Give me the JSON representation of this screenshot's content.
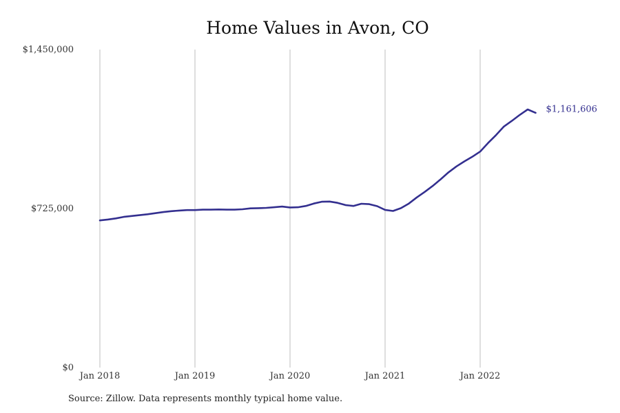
{
  "chart_data": {
    "type": "line",
    "title": "Home Values in Avon, CO",
    "xlabel": "",
    "ylabel": "",
    "ylim": [
      0,
      1450000
    ],
    "y_ticks": [
      0,
      725000,
      1450000
    ],
    "y_tick_labels": [
      "$0",
      "$725,000",
      "$1,450,000"
    ],
    "x_ticks": [
      "2018-01",
      "2019-01",
      "2020-01",
      "2021-01",
      "2022-01"
    ],
    "x_tick_labels": [
      "Jan 2018",
      "Jan 2019",
      "Jan 2020",
      "Jan 2021",
      "Jan 2022"
    ],
    "grid": "vertical lines at x ticks",
    "line_color": "#332f8f",
    "end_label": "$1,161,606",
    "series": [
      {
        "x": [
          "2018-01",
          "2018-02",
          "2018-03",
          "2018-04",
          "2018-05",
          "2018-06",
          "2018-07",
          "2018-08",
          "2018-09",
          "2018-10",
          "2018-11",
          "2018-12",
          "2019-01",
          "2019-02",
          "2019-03",
          "2019-04",
          "2019-05",
          "2019-06",
          "2019-07",
          "2019-08",
          "2019-09",
          "2019-10",
          "2019-11",
          "2019-12",
          "2020-01",
          "2020-02",
          "2020-03",
          "2020-04",
          "2020-05",
          "2020-06",
          "2020-07",
          "2020-08",
          "2020-09",
          "2020-10",
          "2020-11",
          "2020-12",
          "2021-01",
          "2021-02",
          "2021-03",
          "2021-04",
          "2021-05",
          "2021-06",
          "2021-07",
          "2021-08",
          "2021-09",
          "2021-10",
          "2021-11",
          "2021-12",
          "2022-01",
          "2022-02",
          "2022-03",
          "2022-04",
          "2022-05",
          "2022-06",
          "2022-07",
          "2022-08"
        ],
        "values": [
          671000,
          675000,
          680000,
          687000,
          691000,
          695000,
          699000,
          704000,
          709000,
          713000,
          716000,
          718000,
          718000,
          720000,
          720000,
          721000,
          720000,
          720000,
          722000,
          726000,
          727000,
          728000,
          731000,
          734000,
          730000,
          731000,
          737000,
          748000,
          756000,
          757000,
          751000,
          741000,
          737000,
          747000,
          745000,
          736000,
          719000,
          714000,
          727000,
          748000,
          776000,
          801000,
          828000,
          858000,
          890000,
          917000,
          940000,
          961000,
          985000,
          1024000,
          1060000,
          1099000,
          1125000,
          1152000,
          1177000,
          1161606
        ]
      }
    ]
  },
  "footer": {
    "source": "Source: Zillow. Data represents monthly typical home value."
  }
}
